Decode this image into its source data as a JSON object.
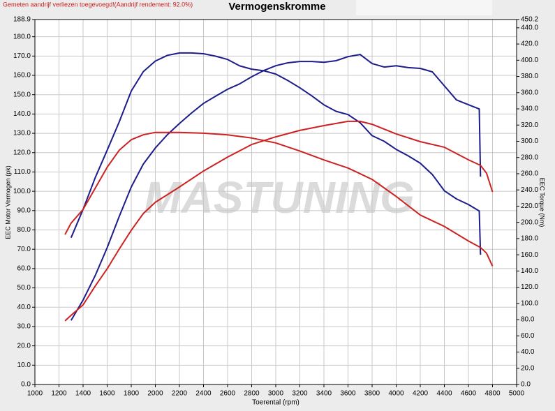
{
  "chart_data": {
    "type": "line",
    "title": "Vermogenskromme",
    "note": "Gemeten aandrijf verliezen toegevoegd!(Aandrijf rendement: 92.0%)",
    "watermark": "MASTUNING",
    "x_label": "Toerental (rpm)",
    "y_label": "EEC Motor Vermogen (pk)",
    "y2_label": "EEC Torque (Nm)",
    "grid": true,
    "xlim": [
      1000,
      5000
    ],
    "xticks": [
      1000,
      1200,
      1400,
      1600,
      1800,
      2000,
      2200,
      2400,
      2600,
      2800,
      3000,
      3200,
      3400,
      3600,
      3800,
      4000,
      4200,
      4400,
      4600,
      4800,
      5000
    ],
    "ylim": [
      0,
      188.9
    ],
    "yticks": [
      {
        "value": 0,
        "label": "0.0"
      },
      {
        "value": 10,
        "label": "10.0"
      },
      {
        "value": 20,
        "label": "20.0"
      },
      {
        "value": 30,
        "label": "30.0"
      },
      {
        "value": 40,
        "label": "40.0"
      },
      {
        "value": 50,
        "label": "50.0"
      },
      {
        "value": 60,
        "label": "60.0"
      },
      {
        "value": 70,
        "label": "70.0"
      },
      {
        "value": 80,
        "label": "80.0"
      },
      {
        "value": 90,
        "label": "90.0"
      },
      {
        "value": 100,
        "label": "100.0"
      },
      {
        "value": 110,
        "label": "110.0"
      },
      {
        "value": 120,
        "label": "120.0"
      },
      {
        "value": 130,
        "label": "130.0"
      },
      {
        "value": 140,
        "label": "140.0"
      },
      {
        "value": 150,
        "label": "150.0"
      },
      {
        "value": 160,
        "label": "160.0"
      },
      {
        "value": 170,
        "label": "170.0"
      },
      {
        "value": 180,
        "label": "180.0"
      },
      188.9
    ],
    "y2lim": [
      0,
      450.2
    ],
    "y2ticks": [
      {
        "value": 0,
        "label": "0.0"
      },
      {
        "value": 20,
        "label": "20.0"
      },
      {
        "value": 40,
        "label": "40.0"
      },
      {
        "value": 60,
        "label": "60.0"
      },
      {
        "value": 80,
        "label": "80.0"
      },
      {
        "value": 100,
        "label": "100.0"
      },
      {
        "value": 120,
        "label": "120.0"
      },
      {
        "value": 140,
        "label": "140.0"
      },
      {
        "value": 160,
        "label": "160.0"
      },
      {
        "value": 180,
        "label": "180.0"
      },
      {
        "value": 200,
        "label": "200.0"
      },
      {
        "value": 220,
        "label": "220.0"
      },
      {
        "value": 240,
        "label": "240.0"
      },
      {
        "value": 260,
        "label": "260.0"
      },
      {
        "value": 280,
        "label": "280.0"
      },
      {
        "value": 300,
        "label": "300.0"
      },
      {
        "value": 320,
        "label": "320.0"
      },
      {
        "value": 340,
        "label": "340.0"
      },
      {
        "value": 360,
        "label": "360.0"
      },
      {
        "value": 380,
        "label": "380.0"
      },
      {
        "value": 400,
        "label": "400.0"
      },
      {
        "value": 420,
        "label": "420.0"
      },
      {
        "value": 440,
        "label": "440.0"
      },
      450.2
    ],
    "series": [
      {
        "color": "#1c1c8a",
        "axis": "y2",
        "x": [
          1300,
          1400,
          1500,
          1600,
          1700,
          1800,
          1900,
          2000,
          2100,
          2200,
          2300,
          2400,
          2500,
          2600,
          2700,
          2800,
          2900,
          3000,
          3100,
          3200,
          3300,
          3400,
          3500,
          3600,
          3700,
          3800,
          3900,
          4000,
          4100,
          4200,
          4300,
          4400,
          4500,
          4600,
          4690,
          4700
        ],
        "values": [
          181,
          216,
          255,
          289,
          324,
          362,
          386,
          399,
          406,
          409,
          409,
          408,
          405,
          401,
          393,
          389,
          387,
          383,
          375,
          366,
          356,
          345,
          337,
          333,
          323,
          307,
          300,
          290,
          282,
          273,
          259,
          239,
          229,
          222,
          214,
          160
        ]
      },
      {
        "color": "#1c1c8a",
        "x": [
          1300,
          1400,
          1500,
          1600,
          1700,
          1800,
          1900,
          2000,
          2100,
          2200,
          2300,
          2400,
          2500,
          2600,
          2700,
          2800,
          2900,
          3000,
          3100,
          3200,
          3300,
          3400,
          3500,
          3600,
          3700,
          3800,
          3900,
          4000,
          4100,
          4200,
          4300,
          4400,
          4500,
          4600,
          4690,
          4700
        ],
        "values": [
          33.2,
          43.7,
          56.3,
          70.8,
          87.0,
          102.2,
          114.1,
          122.4,
          129.3,
          135.1,
          140.5,
          145.5,
          149.2,
          152.8,
          155.6,
          159.3,
          162.5,
          165.0,
          166.5,
          167.2,
          167.2,
          166.8,
          167.6,
          169.7,
          170.8,
          166.1,
          164.3,
          165.0,
          164.0,
          163.6,
          161.8,
          154.6,
          147.3,
          144.8,
          142.6,
          107.6
        ]
      },
      {
        "color": "#cc2222",
        "axis": "y2",
        "x": [
          1250,
          1300,
          1400,
          1500,
          1600,
          1700,
          1800,
          1900,
          2000,
          2200,
          2400,
          2600,
          2800,
          3000,
          3200,
          3400,
          3600,
          3800,
          4000,
          4200,
          4400,
          4600,
          4700,
          4750,
          4800
        ],
        "values": [
          185,
          199,
          216,
          242,
          268,
          289,
          302,
          308,
          311,
          311,
          310,
          308,
          304,
          298,
          288,
          277,
          267,
          253,
          232,
          209,
          195,
          177,
          169,
          162,
          146
        ]
      },
      {
        "color": "#cc2222",
        "x": [
          1250,
          1300,
          1400,
          1500,
          1600,
          1700,
          1800,
          1900,
          2000,
          2200,
          2400,
          2600,
          2800,
          3000,
          3200,
          3400,
          3600,
          3700,
          3800,
          4000,
          4200,
          4400,
          4600,
          4700,
          4750,
          4800
        ],
        "values": [
          32.9,
          35.8,
          41.2,
          50.9,
          59.9,
          70.1,
          79.8,
          88.5,
          94.3,
          102.2,
          110.5,
          117.7,
          124.2,
          128.2,
          131.5,
          134.0,
          136.2,
          136.2,
          134.7,
          129.7,
          125.7,
          122.8,
          116.3,
          113.4,
          109.4,
          99.7
        ]
      }
    ]
  }
}
